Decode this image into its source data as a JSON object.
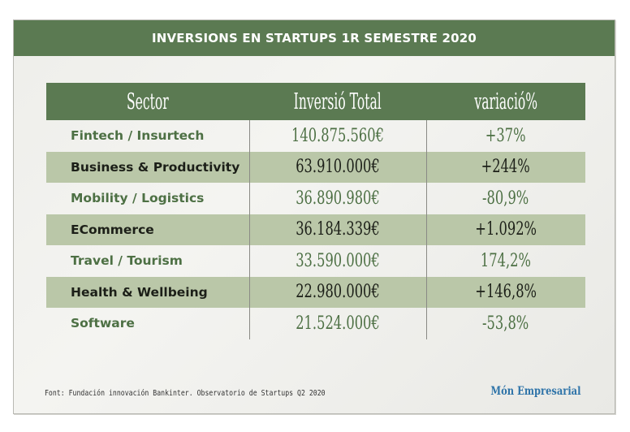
{
  "title": "INVERSIONS EN STARTUPS 1R SEMESTRE 2020",
  "chart_data": {
    "type": "table",
    "columns": [
      "Sector",
      "Inversió Total",
      "variació%"
    ],
    "rows": [
      {
        "sector": "Fintech / Insurtech",
        "investment": "140.875.560€",
        "variation": "+37%"
      },
      {
        "sector": "Business & Productivity",
        "investment": "63.910.000€",
        "variation": "+244%"
      },
      {
        "sector": "Mobility / Logistics",
        "investment": "36.890.980€",
        "variation": "-80,9%"
      },
      {
        "sector": "ECommerce",
        "investment": "36.184.339€",
        "variation": "+1.092%"
      },
      {
        "sector": "Travel / Tourism",
        "investment": "33.590.000€",
        "variation": "174,2%"
      },
      {
        "sector": "Health & Wellbeing",
        "investment": "22.980.000€",
        "variation": "+146,8%"
      },
      {
        "sector": "Software",
        "investment": "21.524.000€",
        "variation": "-53,8%"
      }
    ],
    "investment_eur": [
      140875560,
      63910000,
      36890980,
      36184339,
      33590000,
      22980000,
      21524000
    ],
    "variation_pct": [
      37,
      244,
      -80.9,
      1092,
      174.2,
      146.8,
      -53.8
    ]
  },
  "source": "Font: Fundación innovación Bankinter. Observatorio de Startups Q2 2020",
  "brand": "Món Empresarial",
  "colors": {
    "header_green": "#5b7a52",
    "row_shade": "#bac7a8",
    "sector_green_text": "#4d7044",
    "dark_text": "#1c1f18",
    "brand_blue": "#2f74a9"
  }
}
